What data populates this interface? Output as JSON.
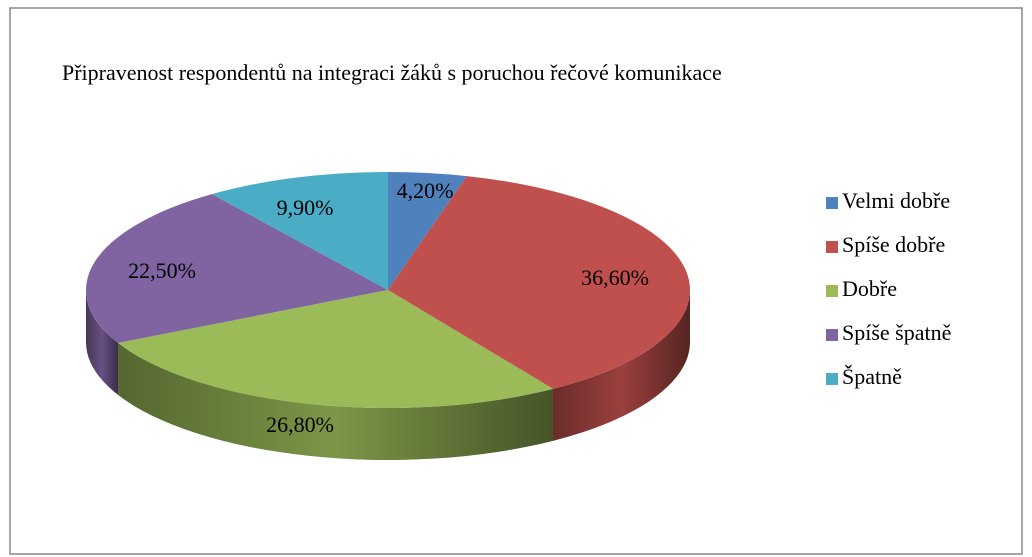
{
  "chart_data": {
    "type": "pie3d",
    "title": "Připravenost respondentů na integraci  žáků s poruchou řečové komunikace",
    "categories": [
      "Velmi dobře",
      "Spíše dobře",
      "Dobře",
      "Spíše špatně",
      "Špatně"
    ],
    "values": [
      4.2,
      36.6,
      26.8,
      22.5,
      9.9
    ],
    "value_labels": [
      "4,20%",
      "36,60%",
      "26,80%",
      "22,50%",
      "9,90%"
    ],
    "colors": [
      "#4f81bd",
      "#c0504d",
      "#9bbb59",
      "#8064a2",
      "#4bacc6"
    ],
    "legend": "right"
  }
}
